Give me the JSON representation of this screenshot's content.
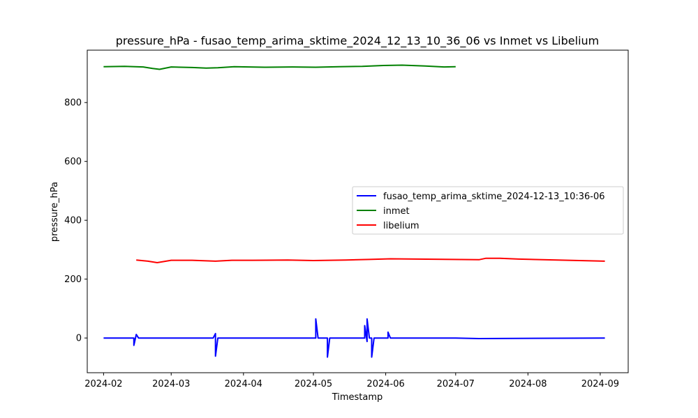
{
  "chart_data": {
    "type": "line",
    "title": "pressure_hPa - fusao_temp_arima_sktime_2024_12_13_10_36_06 vs Inmet vs Libelium",
    "xlabel": "Timestamp",
    "ylabel": "pressure_hPa",
    "x_ticks": [
      "2024-02",
      "2024-03",
      "2024-04",
      "2024-05",
      "2024-06",
      "2024-07",
      "2024-08",
      "2024-09"
    ],
    "x_range": [
      "2024-01-25",
      "2024-09-13"
    ],
    "y_ticks": [
      0,
      200,
      400,
      600,
      800
    ],
    "ylim": [
      -118,
      978
    ],
    "grid": false,
    "legend_position": "center-right",
    "series": [
      {
        "name": "fusao_temp_arima_sktime_2024-12-13_10:36-06",
        "color": "#0000ff",
        "points": [
          [
            "2024-02-01",
            0
          ],
          [
            "2024-02-14",
            0
          ],
          [
            "2024-02-14",
            -25
          ],
          [
            "2024-02-15",
            12
          ],
          [
            "2024-02-16",
            0
          ],
          [
            "2024-03-19",
            0
          ],
          [
            "2024-03-20",
            15
          ],
          [
            "2024-03-20",
            -62
          ],
          [
            "2024-03-21",
            0
          ],
          [
            "2024-05-02",
            0
          ],
          [
            "2024-05-02",
            65
          ],
          [
            "2024-05-03",
            0
          ],
          [
            "2024-05-07",
            0
          ],
          [
            "2024-05-07",
            -65
          ],
          [
            "2024-05-08",
            0
          ],
          [
            "2024-05-23",
            0
          ],
          [
            "2024-05-23",
            42
          ],
          [
            "2024-05-24",
            -12
          ],
          [
            "2024-05-24",
            65
          ],
          [
            "2024-05-25",
            0
          ],
          [
            "2024-05-26",
            0
          ],
          [
            "2024-05-26",
            -65
          ],
          [
            "2024-05-27",
            0
          ],
          [
            "2024-06-02",
            0
          ],
          [
            "2024-06-02",
            20
          ],
          [
            "2024-06-03",
            0
          ],
          [
            "2024-07-01",
            0
          ],
          [
            "2024-07-11",
            -2
          ],
          [
            "2024-09-03",
            0
          ]
        ]
      },
      {
        "name": "inmet",
        "color": "#008000",
        "points": [
          [
            "2024-02-01",
            922
          ],
          [
            "2024-02-10",
            923
          ],
          [
            "2024-02-18",
            921
          ],
          [
            "2024-02-22",
            916
          ],
          [
            "2024-02-25",
            913
          ],
          [
            "2024-03-01",
            921
          ],
          [
            "2024-03-10",
            919
          ],
          [
            "2024-03-16",
            917
          ],
          [
            "2024-03-21",
            918
          ],
          [
            "2024-03-28",
            922
          ],
          [
            "2024-04-10",
            920
          ],
          [
            "2024-04-22",
            921
          ],
          [
            "2024-05-02",
            920
          ],
          [
            "2024-05-12",
            922
          ],
          [
            "2024-05-22",
            923
          ],
          [
            "2024-05-31",
            926
          ],
          [
            "2024-06-08",
            927
          ],
          [
            "2024-06-18",
            924
          ],
          [
            "2024-06-26",
            921
          ],
          [
            "2024-07-01",
            922
          ]
        ]
      },
      {
        "name": "libelium",
        "color": "#ff0000",
        "points": [
          [
            "2024-02-15",
            265
          ],
          [
            "2024-02-20",
            261
          ],
          [
            "2024-02-24",
            256
          ],
          [
            "2024-03-01",
            264
          ],
          [
            "2024-03-10",
            264
          ],
          [
            "2024-03-20",
            261
          ],
          [
            "2024-03-27",
            264
          ],
          [
            "2024-04-05",
            264
          ],
          [
            "2024-04-20",
            265
          ],
          [
            "2024-05-01",
            263
          ],
          [
            "2024-05-15",
            265
          ],
          [
            "2024-05-25",
            267
          ],
          [
            "2024-06-03",
            269
          ],
          [
            "2024-07-11",
            266
          ],
          [
            "2024-07-14",
            271
          ],
          [
            "2024-07-20",
            271
          ],
          [
            "2024-07-28",
            268
          ],
          [
            "2024-09-03",
            261
          ]
        ]
      }
    ]
  }
}
